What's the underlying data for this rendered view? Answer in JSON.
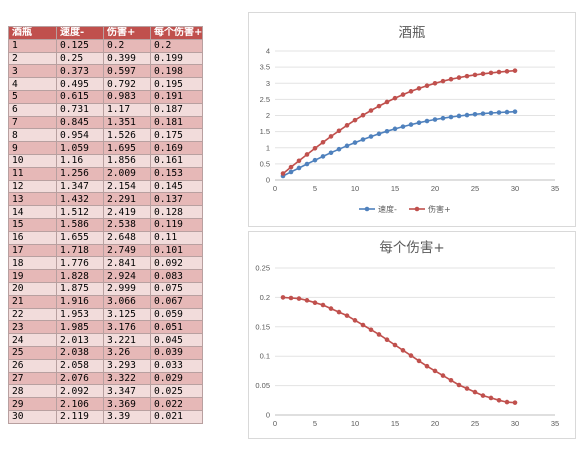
{
  "table": {
    "headers": [
      "酒瓶",
      "速度-",
      "伤害+",
      "每个伤害+"
    ],
    "rows": [
      [
        "1",
        "0.125",
        "0.2",
        "0.2"
      ],
      [
        "2",
        "0.25",
        "0.399",
        "0.199"
      ],
      [
        "3",
        "0.373",
        "0.597",
        "0.198"
      ],
      [
        "4",
        "0.495",
        "0.792",
        "0.195"
      ],
      [
        "5",
        "0.615",
        "0.983",
        "0.191"
      ],
      [
        "6",
        "0.731",
        "1.17",
        "0.187"
      ],
      [
        "7",
        "0.845",
        "1.351",
        "0.181"
      ],
      [
        "8",
        "0.954",
        "1.526",
        "0.175"
      ],
      [
        "9",
        "1.059",
        "1.695",
        "0.169"
      ],
      [
        "10",
        "1.16",
        "1.856",
        "0.161"
      ],
      [
        "11",
        "1.256",
        "2.009",
        "0.153"
      ],
      [
        "12",
        "1.347",
        "2.154",
        "0.145"
      ],
      [
        "13",
        "1.432",
        "2.291",
        "0.137"
      ],
      [
        "14",
        "1.512",
        "2.419",
        "0.128"
      ],
      [
        "15",
        "1.586",
        "2.538",
        "0.119"
      ],
      [
        "16",
        "1.655",
        "2.648",
        "0.11"
      ],
      [
        "17",
        "1.718",
        "2.749",
        "0.101"
      ],
      [
        "18",
        "1.776",
        "2.841",
        "0.092"
      ],
      [
        "19",
        "1.828",
        "2.924",
        "0.083"
      ],
      [
        "20",
        "1.875",
        "2.999",
        "0.075"
      ],
      [
        "21",
        "1.916",
        "3.066",
        "0.067"
      ],
      [
        "22",
        "1.953",
        "3.125",
        "0.059"
      ],
      [
        "23",
        "1.985",
        "3.176",
        "0.051"
      ],
      [
        "24",
        "2.013",
        "3.221",
        "0.045"
      ],
      [
        "25",
        "2.038",
        "3.26",
        "0.039"
      ],
      [
        "26",
        "2.058",
        "3.293",
        "0.033"
      ],
      [
        "27",
        "2.076",
        "3.322",
        "0.029"
      ],
      [
        "28",
        "2.092",
        "3.347",
        "0.025"
      ],
      [
        "29",
        "2.106",
        "3.369",
        "0.022"
      ],
      [
        "30",
        "2.119",
        "3.39",
        "0.021"
      ]
    ]
  },
  "chart_data": [
    {
      "type": "line",
      "title": "酒瓶",
      "x": [
        1,
        2,
        3,
        4,
        5,
        6,
        7,
        8,
        9,
        10,
        11,
        12,
        13,
        14,
        15,
        16,
        17,
        18,
        19,
        20,
        21,
        22,
        23,
        24,
        25,
        26,
        27,
        28,
        29,
        30
      ],
      "xlim": [
        0,
        35
      ],
      "xticks": [
        "0",
        "5",
        "10",
        "15",
        "20",
        "25",
        "30",
        "35"
      ],
      "ylim": [
        0,
        4
      ],
      "yticks": [
        "0",
        "0.5",
        "1",
        "1.5",
        "2",
        "2.5",
        "3",
        "3.5",
        "4"
      ],
      "legend": "bottom",
      "grid": true,
      "series": [
        {
          "name": "速度-",
          "color": "#4f81bd",
          "values": [
            0.125,
            0.25,
            0.373,
            0.495,
            0.615,
            0.731,
            0.845,
            0.954,
            1.059,
            1.16,
            1.256,
            1.347,
            1.432,
            1.512,
            1.586,
            1.655,
            1.718,
            1.776,
            1.828,
            1.875,
            1.916,
            1.953,
            1.985,
            2.013,
            2.038,
            2.058,
            2.076,
            2.092,
            2.106,
            2.119
          ]
        },
        {
          "name": "伤害+",
          "color": "#c0504d",
          "values": [
            0.2,
            0.399,
            0.597,
            0.792,
            0.983,
            1.17,
            1.351,
            1.526,
            1.695,
            1.856,
            2.009,
            2.154,
            2.291,
            2.419,
            2.538,
            2.648,
            2.749,
            2.841,
            2.924,
            2.999,
            3.066,
            3.125,
            3.176,
            3.221,
            3.26,
            3.293,
            3.322,
            3.347,
            3.369,
            3.39
          ]
        }
      ]
    },
    {
      "type": "line",
      "title": "每个伤害+",
      "x": [
        1,
        2,
        3,
        4,
        5,
        6,
        7,
        8,
        9,
        10,
        11,
        12,
        13,
        14,
        15,
        16,
        17,
        18,
        19,
        20,
        21,
        22,
        23,
        24,
        25,
        26,
        27,
        28,
        29,
        30
      ],
      "xlim": [
        0,
        35
      ],
      "xticks": [
        "0",
        "5",
        "10",
        "15",
        "20",
        "25",
        "30",
        "35"
      ],
      "ylim": [
        0,
        0.25
      ],
      "yticks": [
        "0",
        "0.05",
        "0.1",
        "0.15",
        "0.2",
        "0.25"
      ],
      "grid": true,
      "series": [
        {
          "color": "#c0504d",
          "values": [
            0.2,
            0.199,
            0.198,
            0.195,
            0.191,
            0.187,
            0.181,
            0.175,
            0.169,
            0.161,
            0.153,
            0.145,
            0.137,
            0.128,
            0.119,
            0.11,
            0.101,
            0.092,
            0.083,
            0.075,
            0.067,
            0.059,
            0.051,
            0.045,
            0.039,
            0.033,
            0.029,
            0.025,
            0.022,
            0.021
          ]
        }
      ]
    }
  ]
}
